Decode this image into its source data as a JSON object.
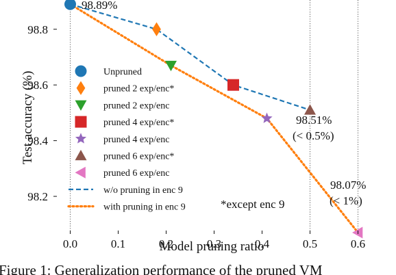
{
  "chart_data": {
    "type": "line",
    "xlabel": "Model pruning ratio",
    "ylabel": "Test accuracy (%)",
    "xlim": [
      -0.035,
      0.625
    ],
    "ylim": [
      98.065,
      98.905
    ],
    "xticks": [
      0.0,
      0.1,
      0.2,
      0.3,
      0.4,
      0.5,
      0.6
    ],
    "xtick_labels": [
      "0.0",
      "0.1",
      "0.2",
      "0.3",
      "0.4",
      "0.5",
      "0.6"
    ],
    "yticks": [
      98.2,
      98.4,
      98.6,
      98.8
    ],
    "ytick_labels": [
      "98.2",
      "98.4",
      "98.6",
      "98.8"
    ],
    "vlines": [
      0.0,
      0.5,
      0.6
    ],
    "series": [
      {
        "name": "w/o pruning in enc 9",
        "style": "dashed",
        "color": "#1f77b4",
        "x": [
          0.0,
          0.18,
          0.34,
          0.5
        ],
        "y": [
          98.89,
          98.8,
          98.6,
          98.51
        ]
      },
      {
        "name": "with pruning in enc 9",
        "style": "dotted",
        "color": "#ff7f0e",
        "x": [
          0.0,
          0.21,
          0.41,
          0.6
        ],
        "y": [
          98.89,
          98.67,
          98.48,
          98.07
        ]
      }
    ],
    "points": [
      {
        "name": "Unpruned",
        "marker": "circle",
        "color": "#1f77b4",
        "x": 0.0,
        "y": 98.89
      },
      {
        "name": "pruned 2 exp/enc*",
        "marker": "diamond",
        "color": "#ff7f0e",
        "x": 0.18,
        "y": 98.8
      },
      {
        "name": "pruned 2 exp/enc",
        "marker": "triangle-down",
        "color": "#2ca02c",
        "x": 0.21,
        "y": 98.67
      },
      {
        "name": "pruned 4 exp/enc*",
        "marker": "square",
        "color": "#d62728",
        "x": 0.34,
        "y": 98.6
      },
      {
        "name": "pruned 4 exp/enc",
        "marker": "star",
        "color": "#9467bd",
        "x": 0.41,
        "y": 98.48
      },
      {
        "name": "pruned 6 exp/enc*",
        "marker": "triangle-up",
        "color": "#8c564b",
        "x": 0.5,
        "y": 98.51
      },
      {
        "name": "pruned 6 exp/enc",
        "marker": "triangle-left",
        "color": "#e377c2",
        "x": 0.6,
        "y": 98.07
      }
    ],
    "legend_entries": [
      "Unpruned",
      "pruned 2 exp/enc*",
      "pruned 2 exp/enc",
      "pruned 4 exp/enc*",
      "pruned 4 exp/enc",
      "pruned 6 exp/enc*",
      "pruned 6 exp/enc",
      "w/o pruning in enc 9",
      "with pruning in enc 9"
    ],
    "legend_placement": "center-left",
    "annotations": {
      "unpruned": "98.89%",
      "pruned6_star_value": "98.51%",
      "pruned6_star_delta": "(< 0.5%)",
      "pruned6_value": "98.07%",
      "pruned6_delta": "(< 1%)",
      "footnote": "*except enc 9"
    }
  },
  "caption": "Figure 1: Generalization performance of the pruned VM"
}
